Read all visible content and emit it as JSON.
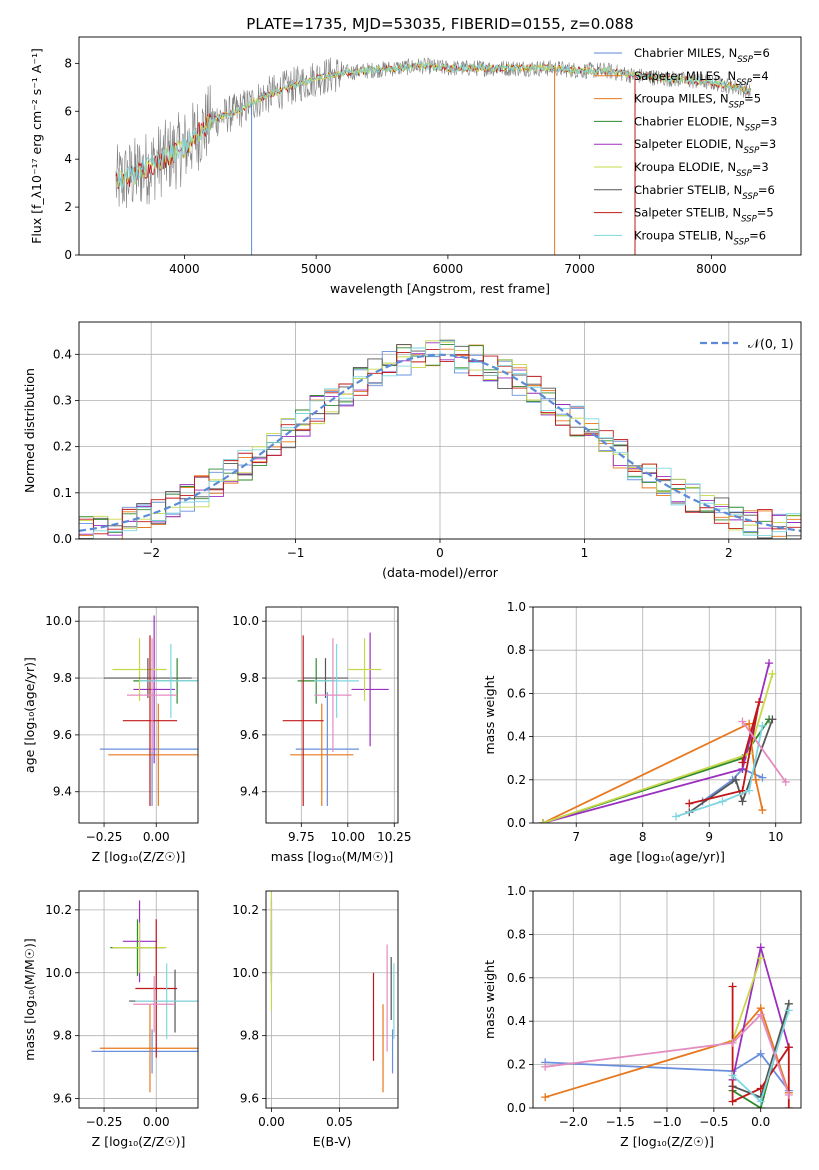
{
  "figure_title": "PLATE=1735, MJD=53035, FIBERID=0155, z=0.088",
  "colors": {
    "models": [
      "#6a8fdc",
      "#e8781e",
      "#2f8a2f",
      "#9b2fbf",
      "#c6d84b",
      "#555555",
      "#c01818",
      "#7fd6df"
    ],
    "pink": "#e38cc0",
    "data": "#808080",
    "gaussian": "#5b8bd6",
    "grid": "#b0b0b0"
  },
  "chart_data": [
    {
      "id": "spectrum",
      "type": "line",
      "xlabel": "wavelength [Angstrom, rest frame]",
      "ylabel": "Flux [f_λ10⁻¹⁷ erg cm⁻² s⁻¹ A⁻¹]",
      "xlim": [
        3200,
        8680
      ],
      "ylim": [
        0,
        9.1
      ],
      "xticks": [
        4000,
        5000,
        6000,
        7000,
        8000
      ],
      "yticks": [
        0,
        2,
        4,
        6,
        8
      ],
      "grid": false,
      "legend_position": "right",
      "continuum": {
        "x": [
          3480,
          3600,
          3800,
          4000,
          4200,
          4400,
          4600,
          4800,
          5000,
          5200,
          5400,
          5600,
          5800,
          6000,
          6200,
          6400,
          6600,
          6800,
          7000,
          7200,
          7400,
          7600,
          7800,
          8000,
          8200,
          8300
        ],
        "y": [
          3.0,
          3.3,
          3.9,
          4.5,
          5.6,
          6.0,
          6.6,
          7.0,
          7.4,
          7.6,
          7.7,
          7.8,
          7.9,
          7.8,
          7.8,
          7.8,
          7.8,
          7.8,
          7.7,
          7.7,
          7.5,
          7.4,
          7.3,
          7.2,
          7.0,
          6.8
        ]
      },
      "legend": [
        {
          "label": "Chabrier MILES, N",
          "sub": "SSP",
          "suffix": "=6"
        },
        {
          "label": "Salpeter MILES, N",
          "sub": "SSP",
          "suffix": "=4"
        },
        {
          "label": "Kroupa MILES, N",
          "sub": "SSP",
          "suffix": "=5"
        },
        {
          "label": "Chabrier ELODIE, N",
          "sub": "SSP",
          "suffix": "=3"
        },
        {
          "label": "Salpeter ELODIE, N",
          "sub": "SSP",
          "suffix": "=3"
        },
        {
          "label": "Kroupa ELODIE, N",
          "sub": "SSP",
          "suffix": "=3"
        },
        {
          "label": "Chabrier STELIB, N",
          "sub": "SSP",
          "suffix": "=6"
        },
        {
          "label": "Salpeter STELIB, N",
          "sub": "SSP",
          "suffix": "=5"
        },
        {
          "label": "Kroupa STELIB, N",
          "sub": "SSP",
          "suffix": "=6"
        }
      ]
    },
    {
      "id": "residuals",
      "type": "line",
      "xlabel": "(data-model)/error",
      "ylabel": "Normed distribution",
      "xlim": [
        -2.5,
        2.5
      ],
      "ylim": [
        0,
        0.47
      ],
      "xticks": [
        -2,
        -1,
        0,
        1,
        2
      ],
      "yticks": [
        0.0,
        0.1,
        0.2,
        0.3,
        0.4
      ],
      "xticklabels": [
        "−2",
        "−1",
        "0",
        "1",
        "2"
      ],
      "yticklabels": [
        "0.0",
        "0.1",
        "0.2",
        "0.3",
        "0.4"
      ],
      "grid": true,
      "legend": [
        "𝒩(0, 1)"
      ],
      "legend_position": "top-right"
    },
    {
      "id": "age_vs_Z",
      "type": "scatter",
      "xlabel": "Z [log₁₀(Z/Z☉)]",
      "ylabel": "age  [log₁₀(age/yr)]",
      "xlim": [
        -0.37,
        0.2
      ],
      "ylim": [
        9.29,
        10.05
      ],
      "xticks": [
        -0.25,
        0.0
      ],
      "yticks": [
        9.4,
        9.6,
        9.8,
        10.0
      ],
      "xticklabels": [
        "−0.25",
        "0.00"
      ],
      "yticklabels": [
        "9.4",
        "9.6",
        "9.8",
        "10.0"
      ],
      "grid": true,
      "points": [
        {
          "x": -0.02,
          "y": 9.55,
          "xerr": 0.25,
          "yerr": 0.2
        },
        {
          "x": 0.01,
          "y": 9.53,
          "xerr": 0.24,
          "yerr": 0.18
        },
        {
          "x": 0.1,
          "y": 9.79,
          "xerr": 0.21,
          "yerr": 0.08
        },
        {
          "x": -0.01,
          "y": 9.76,
          "xerr": 0.1,
          "yerr": 0.26
        },
        {
          "x": -0.08,
          "y": 9.83,
          "xerr": 0.13,
          "yerr": 0.11
        },
        {
          "x": -0.04,
          "y": 9.8,
          "xerr": 0.21,
          "yerr": 0.07
        },
        {
          "x": -0.03,
          "y": 9.65,
          "xerr": 0.13,
          "yerr": 0.3
        },
        {
          "x": 0.07,
          "y": 9.79,
          "xerr": 0.15,
          "yerr": 0.13
        },
        {
          "x": -0.02,
          "y": 9.74,
          "xerr": 0.12,
          "yerr": 0.2,
          "c": "pink"
        }
      ]
    },
    {
      "id": "age_vs_mass",
      "type": "scatter",
      "xlabel": "mass [log₁₀(M/M☉)]",
      "ylabel": "",
      "xlim": [
        9.56,
        10.27
      ],
      "ylim": [
        9.29,
        10.05
      ],
      "xticks": [
        9.75,
        10.0,
        10.25
      ],
      "yticks": [
        9.4,
        9.6,
        9.8,
        10.0
      ],
      "xticklabels": [
        "9.75",
        "10.00",
        "10.25"
      ],
      "yticklabels": [
        "9.4",
        "9.6",
        "9.8",
        "10.0"
      ],
      "grid": true,
      "points": [
        {
          "x": 9.89,
          "y": 9.55,
          "xerr": 0.17,
          "yerr": 0.2
        },
        {
          "x": 9.86,
          "y": 9.53,
          "xerr": 0.17,
          "yerr": 0.18
        },
        {
          "x": 9.83,
          "y": 9.79,
          "xerr": 0.1,
          "yerr": 0.08
        },
        {
          "x": 10.12,
          "y": 9.76,
          "xerr": 0.1,
          "yerr": 0.2
        },
        {
          "x": 10.09,
          "y": 9.83,
          "xerr": 0.09,
          "yerr": 0.11
        },
        {
          "x": 9.88,
          "y": 9.8,
          "xerr": 0.12,
          "yerr": 0.07
        },
        {
          "x": 9.76,
          "y": 9.65,
          "xerr": 0.11,
          "yerr": 0.3
        },
        {
          "x": 9.94,
          "y": 9.79,
          "xerr": 0.12,
          "yerr": 0.13
        },
        {
          "x": 9.92,
          "y": 9.74,
          "xerr": 0.1,
          "yerr": 0.2,
          "c": "pink"
        }
      ]
    },
    {
      "id": "weight_vs_age",
      "type": "line",
      "xlabel": "age  [log₁₀(age/yr)]",
      "ylabel": "mass weight",
      "xlim": [
        6.35,
        10.38
      ],
      "ylim": [
        0,
        1.0
      ],
      "xticks": [
        7,
        8,
        9,
        10
      ],
      "yticks": [
        0.0,
        0.2,
        0.4,
        0.6,
        0.8,
        1.0
      ],
      "yticklabels": [
        "0.0",
        "0.2",
        "0.4",
        "0.6",
        "0.8",
        "1.0"
      ],
      "grid": true,
      "series": [
        {
          "x": [
            8.9,
            9.35,
            9.5,
            9.8
          ],
          "y": [
            0.1,
            0.2,
            0.25,
            0.21
          ]
        },
        {
          "x": [
            6.5,
            9.6,
            9.7,
            9.8
          ],
          "y": [
            0.0,
            0.46,
            0.2,
            0.06
          ]
        },
        {
          "x": [
            6.5,
            9.5,
            9.9
          ],
          "y": [
            0.0,
            0.3,
            0.48
          ]
        },
        {
          "x": [
            6.5,
            9.5,
            9.9
          ],
          "y": [
            0.0,
            0.25,
            0.74
          ]
        },
        {
          "x": [
            6.5,
            9.6,
            9.95
          ],
          "y": [
            0.0,
            0.32,
            0.69
          ]
        },
        {
          "x": [
            8.7,
            9.4,
            9.5,
            9.95
          ],
          "y": [
            0.05,
            0.2,
            0.1,
            0.48
          ]
        },
        {
          "x": [
            8.7,
            9.5,
            9.75,
            9.5
          ],
          "y": [
            0.09,
            0.15,
            0.56,
            0.28
          ]
        },
        {
          "x": [
            8.5,
            9.2,
            9.6,
            9.8
          ],
          "y": [
            0.03,
            0.1,
            0.15,
            0.45
          ]
        },
        {
          "x": [
            9.5,
            10.15
          ],
          "y": [
            0.47,
            0.19
          ],
          "c": "pink"
        }
      ]
    },
    {
      "id": "mass_vs_Z",
      "type": "scatter",
      "xlabel": "Z [log₁₀(Z/Z☉)]",
      "ylabel": "mass [log₁₀(M/M☉)]",
      "xlim": [
        -0.37,
        0.2
      ],
      "ylim": [
        9.57,
        10.26
      ],
      "xticks": [
        -0.25,
        0.0
      ],
      "yticks": [
        9.6,
        9.8,
        10.0,
        10.2
      ],
      "xticklabels": [
        "−0.25",
        "0.00"
      ],
      "yticklabels": [
        "9.6",
        "9.8",
        "10.0",
        "10.2"
      ],
      "grid": true,
      "points": [
        {
          "x": -0.02,
          "y": 9.75,
          "xerr": 0.29,
          "yerr": 0.07
        },
        {
          "x": -0.03,
          "y": 9.76,
          "xerr": 0.24,
          "yerr": 0.14
        },
        {
          "x": -0.09,
          "y": 10.08,
          "xerr": 0.13,
          "yerr": 0.09
        },
        {
          "x": -0.08,
          "y": 10.1,
          "xerr": 0.08,
          "yerr": 0.13
        },
        {
          "x": -0.08,
          "y": 10.08,
          "xerr": 0.13,
          "yerr": 0.08
        },
        {
          "x": 0.09,
          "y": 9.91,
          "xerr": 0.22,
          "yerr": 0.1
        },
        {
          "x": 0.0,
          "y": 9.95,
          "xerr": 0.1,
          "yerr": 0.22
        },
        {
          "x": 0.05,
          "y": 9.91,
          "xerr": 0.15,
          "yerr": 0.12
        },
        {
          "x": -0.01,
          "y": 9.9,
          "xerr": 0.1,
          "yerr": 0.09,
          "c": "pink"
        }
      ]
    },
    {
      "id": "mass_vs_EBV",
      "type": "scatter",
      "xlabel": "E(B-V)",
      "ylabel": "",
      "xlim": [
        -0.004,
        0.093
      ],
      "ylim": [
        9.57,
        10.26
      ],
      "xticks": [
        0.0,
        0.05
      ],
      "yticks": [
        9.6,
        9.8,
        10.0,
        10.2
      ],
      "xticklabels": [
        "0.00",
        "0.05"
      ],
      "yticklabels": [
        "9.6",
        "9.8",
        "10.0",
        "10.2"
      ],
      "grid": true,
      "points": [
        {
          "x": 0.089,
          "y": 9.75,
          "xerr": 0,
          "yerr": 0.07
        },
        {
          "x": 0.082,
          "y": 9.76,
          "xerr": 0,
          "yerr": 0.14
        },
        {
          "x": 0.0,
          "y": 10.08,
          "xerr": 0,
          "yerr": 0.09
        },
        {
          "x": 0.0,
          "y": 10.1,
          "xerr": 0,
          "yerr": 0.13
        },
        {
          "x": 0.0,
          "y": 10.08,
          "xerr": 0,
          "yerr": 0.2
        },
        {
          "x": 0.088,
          "y": 9.95,
          "xerr": 0,
          "yerr": 0.1
        },
        {
          "x": 0.075,
          "y": 9.86,
          "xerr": 0,
          "yerr": 0.14
        },
        {
          "x": 0.09,
          "y": 9.91,
          "xerr": 0,
          "yerr": 0.12
        },
        {
          "x": 0.085,
          "y": 9.92,
          "xerr": 0,
          "yerr": 0.17,
          "c": "pink"
        }
      ]
    },
    {
      "id": "weight_vs_Z",
      "type": "line",
      "xlabel": "Z [log₁₀(Z/Z☉)]",
      "ylabel": "mass weight",
      "xlim": [
        -2.43,
        0.43
      ],
      "ylim": [
        0,
        1.0
      ],
      "xticks": [
        -2.0,
        -1.5,
        -1.0,
        -0.5,
        0.0
      ],
      "xticklabels": [
        "−2.0",
        "−1.5",
        "−1.0",
        "−0.5",
        "0.0"
      ],
      "yticks": [
        0.0,
        0.2,
        0.4,
        0.6,
        0.8,
        1.0
      ],
      "yticklabels": [
        "0.0",
        "0.2",
        "0.4",
        "0.6",
        "0.8",
        "1.0"
      ],
      "grid": true,
      "series": [
        {
          "x": [
            -2.3,
            -0.3,
            0.0,
            0.3
          ],
          "y": [
            0.21,
            0.17,
            0.25,
            0.08
          ]
        },
        {
          "x": [
            -2.3,
            -0.3,
            0.0,
            0.3
          ],
          "y": [
            0.05,
            0.31,
            0.46,
            0.07
          ]
        },
        {
          "x": [
            -0.3,
            0.0,
            0.3
          ],
          "y": [
            0.08,
            0.0,
            0.48
          ]
        },
        {
          "x": [
            -0.3,
            0.0,
            0.3
          ],
          "y": [
            0.13,
            0.74,
            0.28
          ]
        },
        {
          "x": [
            -0.3,
            0.0
          ],
          "y": [
            0.31,
            0.69
          ]
        },
        {
          "x": [
            -0.3,
            0.0,
            0.3
          ],
          "y": [
            0.1,
            0.05,
            0.48
          ]
        },
        {
          "x": [
            -0.3,
            -0.3,
            0.0,
            0.3,
            0.3
          ],
          "y": [
            0.56,
            0.03,
            0.09,
            0.28,
            0.0
          ]
        },
        {
          "x": [
            -0.3,
            0.0,
            0.3
          ],
          "y": [
            0.15,
            0.03,
            0.45
          ]
        },
        {
          "x": [
            -2.3,
            -0.3,
            0.0,
            0.3
          ],
          "y": [
            0.19,
            0.3,
            0.43,
            0.06
          ],
          "c": "pink"
        }
      ]
    }
  ]
}
